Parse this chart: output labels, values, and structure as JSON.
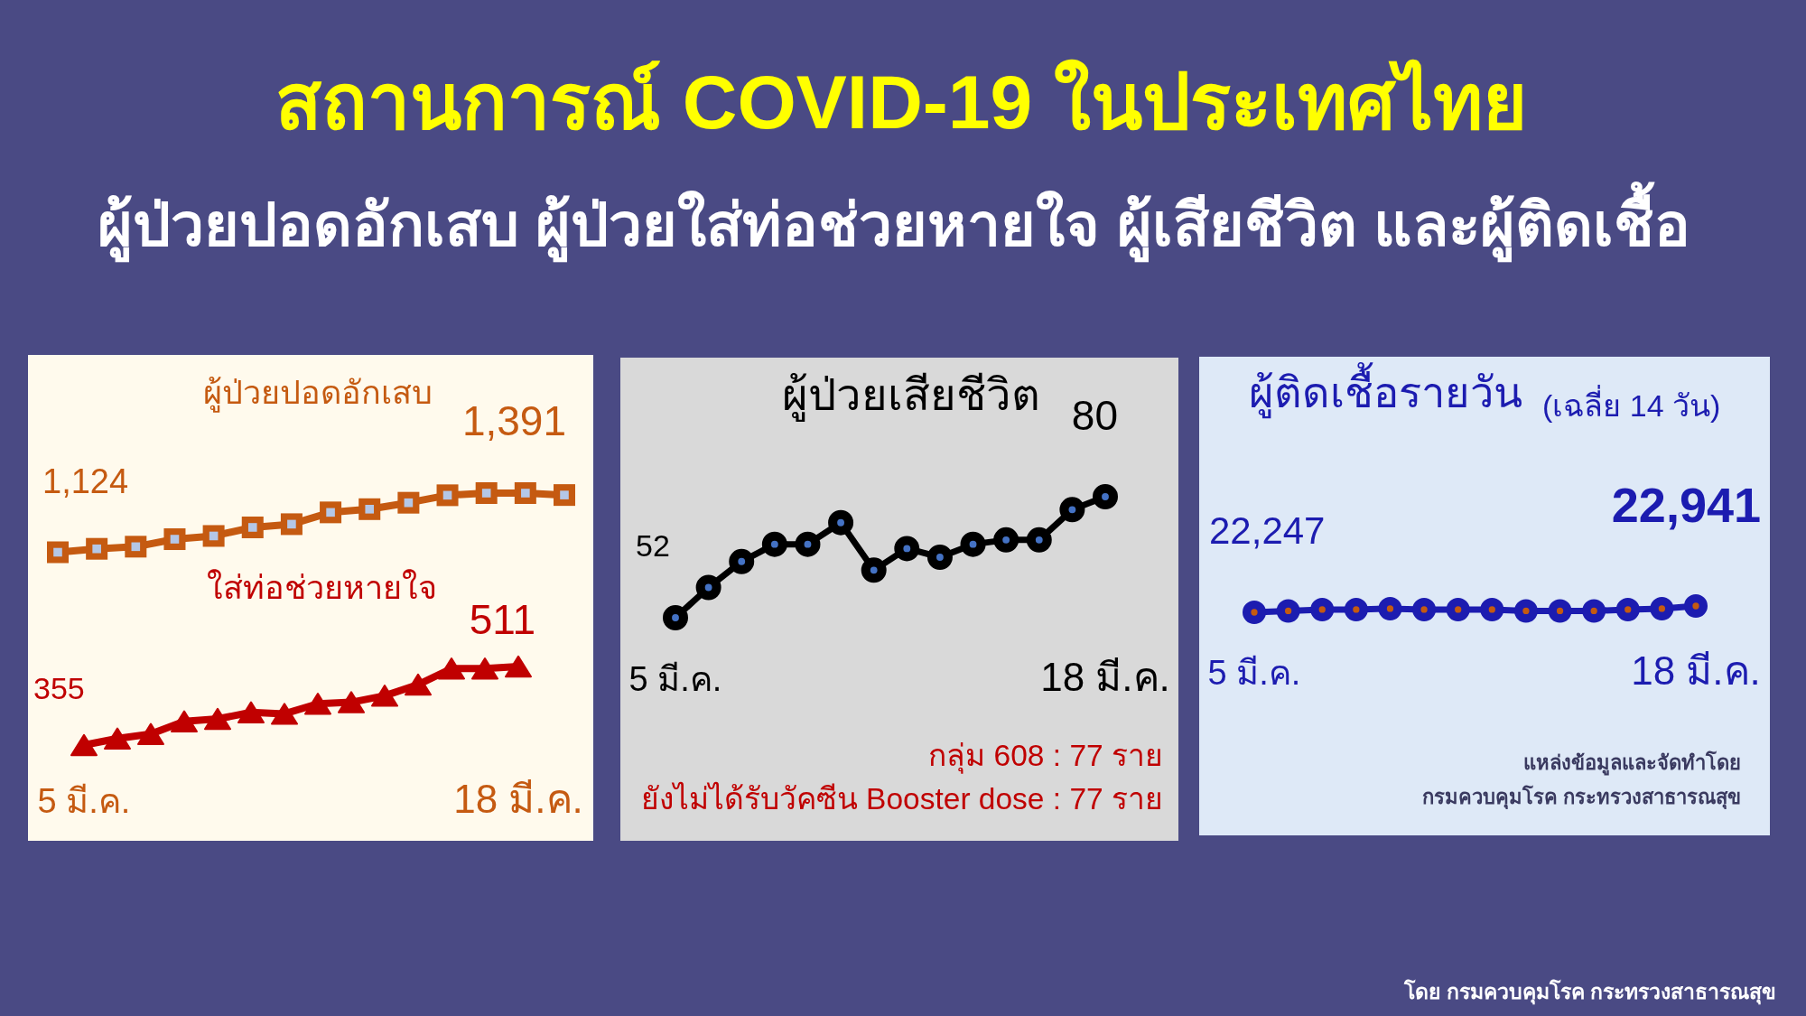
{
  "chart_data": [
    {
      "type": "other",
      "title": "สถานการณ์ COVID-19 ในประเทศไทย",
      "subtitle": "ผู้ป่วยปอดอักเสบ ผู้ป่วยใส่ท่อช่วยหายใจ ผู้เสียชีวิต และผู้ติดเชื้อ",
      "annotations": [
        "โดย กรมควบคุมโรค กระทรวงสาธารณสุข"
      ]
    },
    {
      "type": "line",
      "title": "ผู้ป่วยปอดอักเสบ",
      "categories": [
        null,
        null,
        null,
        null,
        null,
        null,
        null,
        null,
        null,
        null,
        null,
        null,
        null,
        null
      ],
      "marker": "square",
      "series": [
        {
          "color": "#c55a11",
          "values": [
            1124,
            1140,
            1150,
            1185,
            1200,
            1240,
            1255,
            1310,
            1325,
            1355,
            1390,
            1400,
            1400,
            1391
          ],
          "value_labels": [
            "1,124",
            null,
            null,
            null,
            null,
            null,
            null,
            null,
            null,
            null,
            null,
            null,
            null,
            "1,391"
          ]
        }
      ]
    },
    {
      "type": "line",
      "title": "ใส่ท่อช่วยหายใจ",
      "categories": [
        "5 มี.ค.",
        null,
        null,
        null,
        null,
        null,
        null,
        null,
        null,
        null,
        null,
        null,
        null,
        "18 มี.ค."
      ],
      "marker": "triangle",
      "series": [
        {
          "color": "#c00000",
          "values": [
            355,
            368,
            377,
            402,
            407,
            420,
            417,
            437,
            440,
            453,
            475,
            507,
            507,
            511
          ],
          "value_labels": [
            "355",
            null,
            null,
            null,
            null,
            null,
            null,
            null,
            null,
            null,
            null,
            null,
            null,
            "511"
          ]
        }
      ]
    },
    {
      "type": "line",
      "title": "ผู้ป่วยเสียชีวิต",
      "categories": [
        "5 มี.ค.",
        null,
        null,
        null,
        null,
        null,
        null,
        null,
        null,
        null,
        null,
        null,
        null,
        "18 มี.ค."
      ],
      "marker": "circle",
      "series": [
        {
          "color": "#000000",
          "values": [
            52,
            59,
            65,
            69,
            69,
            74,
            63,
            68,
            66,
            69,
            70,
            70,
            77,
            80
          ],
          "value_labels": [
            "52",
            null,
            null,
            null,
            null,
            null,
            null,
            null,
            null,
            null,
            null,
            null,
            null,
            "80"
          ]
        }
      ],
      "annotations": [
        "กลุ่ม 608 : 77 ราย",
        "ยังไม่ได้รับวัคซีน Booster dose : 77 ราย"
      ]
    },
    {
      "type": "line",
      "title": "ผู้ติดเชื้อรายวัน",
      "subtitle": "(เฉลี่ย 14 วัน)",
      "categories": [
        "5 มี.ค.",
        null,
        null,
        null,
        null,
        null,
        null,
        null,
        null,
        null,
        null,
        null,
        null,
        "18 มี.ค."
      ],
      "marker": "circle",
      "series": [
        {
          "color": "#1c1cb0",
          "values": [
            22247,
            22400,
            22550,
            22550,
            22650,
            22550,
            22550,
            22550,
            22400,
            22400,
            22400,
            22550,
            22650,
            22941
          ],
          "value_labels": [
            "22,247",
            null,
            null,
            null,
            null,
            null,
            null,
            null,
            null,
            null,
            null,
            null,
            null,
            "22,941"
          ]
        }
      ],
      "annotations": [
        "แหล่งข้อมูลและจัดทำโดย",
        "กรมควบคุมโรค กระทรวงสาธารณสุข"
      ]
    }
  ]
}
